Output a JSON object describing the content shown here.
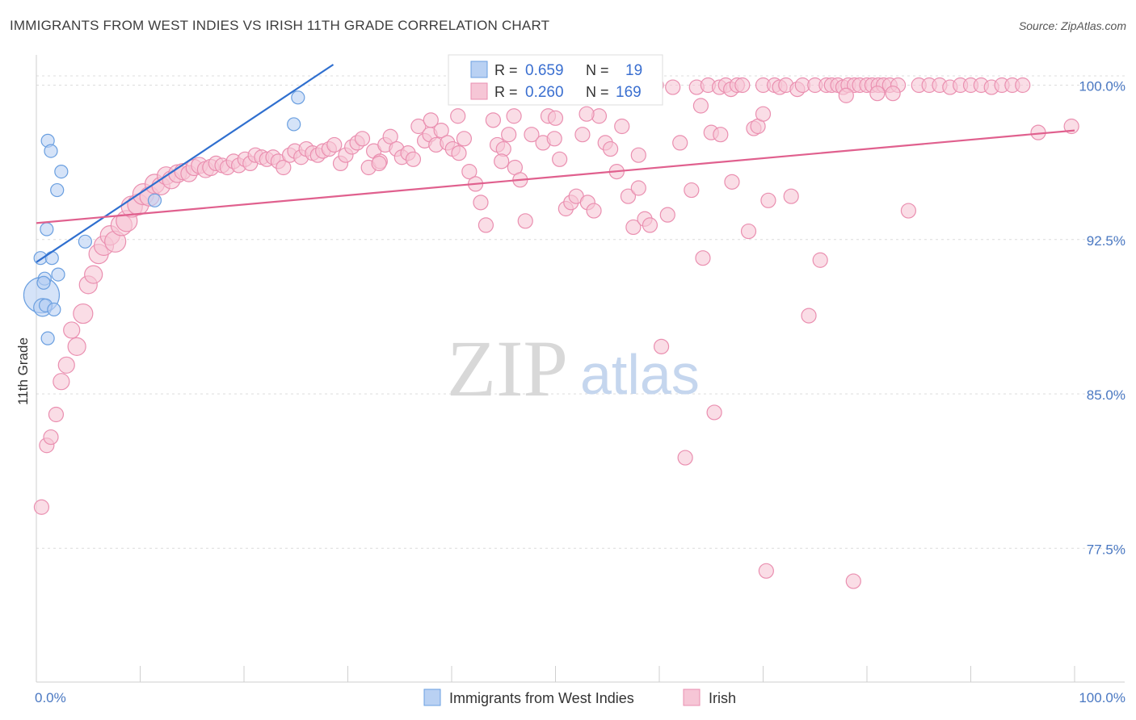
{
  "header": {
    "title": "IMMIGRANTS FROM WEST INDIES VS IRISH 11TH GRADE CORRELATION CHART",
    "source": "Source: ZipAtlas.com"
  },
  "watermark": {
    "zip": "ZIP",
    "atlas": "atlas"
  },
  "colors": {
    "blue": "#6a9fe0",
    "blue_fill": "#b9d1f3",
    "blue_line": "#2f6fcf",
    "pink": "#ea8fb0",
    "pink_fill": "#f6c6d6",
    "pink_line": "#e0608e",
    "axis_text": "#4a78c2",
    "grid": "#d9d9d9"
  },
  "legend_top": {
    "rows": [
      {
        "r_label": "R =",
        "r_value": "0.659",
        "n_label": "N =",
        "n_value": "19",
        "series": "blue"
      },
      {
        "r_label": "R =",
        "r_value": "0.260",
        "n_label": "N =",
        "n_value": "169",
        "series": "pink"
      }
    ]
  },
  "legend_bottom": [
    {
      "label": "Immigrants from West Indies",
      "series": "blue"
    },
    {
      "label": "Irish",
      "series": "pink"
    }
  ],
  "chart_data": {
    "type": "scatter",
    "title": "IMMIGRANTS FROM WEST INDIES VS IRISH 11TH GRADE CORRELATION CHART",
    "xlabel": "",
    "ylabel": "11th Grade",
    "xlim": [
      0,
      100
    ],
    "ylim": [
      71.0,
      101.0
    ],
    "x_tick_labels": [
      "0.0%",
      "100.0%"
    ],
    "y_ticks": [
      77.5,
      85.0,
      92.5,
      100.0
    ],
    "y_tick_labels": [
      "77.5%",
      "85.0%",
      "92.5%",
      "100.0%"
    ],
    "grid": "horizontal dashed",
    "series": [
      {
        "name": "Immigrants from West Indies",
        "color": "#6a9fe0",
        "r": 0.659,
        "n": 19,
        "trend": {
          "x0": 0.0,
          "y0": 91.4,
          "x1": 28.6,
          "y1": 101.0
        },
        "points": [
          [
            0.5,
            89.8,
            22
          ],
          [
            0.6,
            89.2,
            11
          ],
          [
            0.4,
            91.6,
            8
          ],
          [
            0.8,
            90.6,
            8
          ],
          [
            0.9,
            89.3,
            8
          ],
          [
            1.0,
            93.0,
            8
          ],
          [
            1.1,
            87.7,
            8
          ],
          [
            1.1,
            97.3,
            8
          ],
          [
            1.4,
            96.8,
            8
          ],
          [
            1.5,
            91.6,
            8
          ],
          [
            1.7,
            89.1,
            8
          ],
          [
            2.0,
            94.9,
            8
          ],
          [
            2.1,
            90.8,
            8
          ],
          [
            2.4,
            95.8,
            8
          ],
          [
            4.7,
            92.4,
            8
          ],
          [
            11.4,
            94.4,
            8
          ],
          [
            24.8,
            98.1,
            8
          ],
          [
            25.2,
            99.4,
            8
          ],
          [
            0.7,
            90.4,
            8
          ]
        ]
      },
      {
        "name": "Irish",
        "color": "#ea8fb0",
        "r": 0.26,
        "n": 169,
        "trend": {
          "x0": 0.0,
          "y0": 93.3,
          "x1": 100.0,
          "y1": 97.8
        },
        "points": [
          [
            0.5,
            79.5,
            9
          ],
          [
            1.0,
            82.5,
            9
          ],
          [
            1.4,
            82.9,
            9
          ],
          [
            1.9,
            84.0,
            9
          ],
          [
            2.4,
            85.6,
            10
          ],
          [
            2.9,
            86.4,
            10
          ],
          [
            3.4,
            88.1,
            10
          ],
          [
            3.9,
            87.3,
            11
          ],
          [
            4.5,
            88.9,
            12
          ],
          [
            5.0,
            90.3,
            11
          ],
          [
            5.5,
            90.8,
            11
          ],
          [
            6.0,
            91.8,
            12
          ],
          [
            6.5,
            92.2,
            12
          ],
          [
            7.1,
            92.7,
            12
          ],
          [
            7.6,
            92.4,
            13
          ],
          [
            8.2,
            93.2,
            13
          ],
          [
            8.7,
            93.4,
            13
          ],
          [
            9.2,
            94.1,
            13
          ],
          [
            9.8,
            94.2,
            13
          ],
          [
            10.3,
            94.7,
            13
          ],
          [
            10.9,
            94.6,
            12
          ],
          [
            11.4,
            95.2,
            12
          ],
          [
            12.0,
            95.1,
            11
          ],
          [
            12.5,
            95.6,
            11
          ],
          [
            13.0,
            95.4,
            11
          ],
          [
            13.6,
            95.7,
            11
          ],
          [
            14.1,
            95.8,
            10
          ],
          [
            14.7,
            95.7,
            10
          ],
          [
            15.2,
            96.0,
            10
          ],
          [
            15.7,
            96.1,
            10
          ],
          [
            16.3,
            95.9,
            10
          ],
          [
            16.8,
            96.0,
            10
          ],
          [
            17.3,
            96.2,
            9
          ],
          [
            17.9,
            96.1,
            9
          ],
          [
            18.4,
            96.0,
            9
          ],
          [
            19.0,
            96.3,
            9
          ],
          [
            19.5,
            96.1,
            9
          ],
          [
            20.1,
            96.4,
            9
          ],
          [
            20.6,
            96.2,
            9
          ],
          [
            21.1,
            96.6,
            9
          ],
          [
            21.7,
            96.5,
            9
          ],
          [
            22.2,
            96.4,
            9
          ],
          [
            22.8,
            96.5,
            9
          ],
          [
            23.3,
            96.3,
            9
          ],
          [
            23.8,
            96.0,
            9
          ],
          [
            24.4,
            96.6,
            9
          ],
          [
            24.9,
            96.8,
            9
          ],
          [
            25.5,
            96.5,
            9
          ],
          [
            26.0,
            96.9,
            9
          ],
          [
            26.6,
            96.7,
            9
          ],
          [
            27.1,
            96.6,
            9
          ],
          [
            27.6,
            96.8,
            9
          ],
          [
            28.2,
            96.9,
            9
          ],
          [
            28.7,
            97.1,
            9
          ],
          [
            29.3,
            96.2,
            9
          ],
          [
            29.8,
            96.6,
            9
          ],
          [
            30.4,
            97.0,
            9
          ],
          [
            30.9,
            97.2,
            9
          ],
          [
            31.4,
            97.4,
            9
          ],
          [
            32.0,
            96.0,
            9
          ],
          [
            32.5,
            96.8,
            9
          ],
          [
            33.1,
            96.3,
            9
          ],
          [
            33.6,
            97.1,
            9
          ],
          [
            34.1,
            97.5,
            9
          ],
          [
            34.7,
            96.9,
            9
          ],
          [
            35.2,
            96.5,
            9
          ],
          [
            35.8,
            96.7,
            9
          ],
          [
            36.3,
            96.4,
            9
          ],
          [
            36.8,
            98.0,
            9
          ],
          [
            37.4,
            97.3,
            9
          ],
          [
            37.9,
            97.6,
            9
          ],
          [
            38.5,
            97.1,
            9
          ],
          [
            39.0,
            97.8,
            9
          ],
          [
            39.6,
            97.2,
            9
          ],
          [
            40.1,
            96.9,
            9
          ],
          [
            40.7,
            96.7,
            9
          ],
          [
            41.2,
            97.4,
            9
          ],
          [
            41.7,
            95.8,
            9
          ],
          [
            42.3,
            95.2,
            9
          ],
          [
            42.8,
            94.3,
            9
          ],
          [
            43.3,
            93.2,
            9
          ],
          [
            44.0,
            98.3,
            9
          ],
          [
            44.4,
            97.1,
            9
          ],
          [
            45.0,
            96.9,
            9
          ],
          [
            45.5,
            97.6,
            9
          ],
          [
            46.1,
            96.0,
            9
          ],
          [
            46.6,
            95.4,
            9
          ],
          [
            47.1,
            93.4,
            9
          ],
          [
            47.7,
            97.6,
            9
          ],
          [
            48.2,
            99.9,
            9
          ],
          [
            48.8,
            97.2,
            9
          ],
          [
            49.3,
            98.5,
            9
          ],
          [
            49.9,
            97.4,
            9
          ],
          [
            50.4,
            96.4,
            9
          ],
          [
            51.0,
            94.0,
            9
          ],
          [
            51.5,
            94.3,
            9
          ],
          [
            52.0,
            94.6,
            9
          ],
          [
            52.6,
            97.6,
            9
          ],
          [
            53.1,
            94.3,
            9
          ],
          [
            53.7,
            93.9,
            9
          ],
          [
            54.2,
            98.5,
            9
          ],
          [
            54.8,
            97.2,
            9
          ],
          [
            55.3,
            96.9,
            9
          ],
          [
            55.9,
            95.8,
            9
          ],
          [
            56.4,
            98.0,
            9
          ],
          [
            57.0,
            94.6,
            9
          ],
          [
            57.5,
            93.1,
            9
          ],
          [
            58.0,
            95.0,
            9
          ],
          [
            58.6,
            93.5,
            9
          ],
          [
            59.1,
            93.2,
            9
          ],
          [
            59.7,
            100.0,
            9
          ],
          [
            60.2,
            87.3,
            9
          ],
          [
            60.8,
            93.7,
            9
          ],
          [
            61.3,
            99.9,
            9
          ],
          [
            62.5,
            81.9,
            9
          ],
          [
            63.1,
            94.9,
            9
          ],
          [
            63.6,
            99.9,
            9
          ],
          [
            64.2,
            91.6,
            9
          ],
          [
            64.7,
            100.0,
            9
          ],
          [
            65.3,
            84.1,
            9
          ],
          [
            65.8,
            99.9,
            9
          ],
          [
            66.4,
            100.0,
            9
          ],
          [
            66.9,
            99.8,
            9
          ],
          [
            67.5,
            100.0,
            9
          ],
          [
            68.0,
            100.0,
            9
          ],
          [
            68.6,
            92.9,
            9
          ],
          [
            69.1,
            97.9,
            9
          ],
          [
            70.0,
            100.0,
            9
          ],
          [
            70.5,
            94.4,
            9
          ],
          [
            71.1,
            100.0,
            9
          ],
          [
            71.6,
            99.9,
            9
          ],
          [
            72.2,
            100.0,
            9
          ],
          [
            72.7,
            94.6,
            9
          ],
          [
            73.3,
            99.8,
            9
          ],
          [
            73.8,
            100.0,
            9
          ],
          [
            74.4,
            88.8,
            9
          ],
          [
            75.0,
            100.0,
            9
          ],
          [
            75.5,
            91.5,
            9
          ],
          [
            76.1,
            100.0,
            9
          ],
          [
            76.6,
            100.0,
            9
          ],
          [
            77.2,
            100.0,
            9
          ],
          [
            77.7,
            99.9,
            9
          ],
          [
            78.2,
            100.0,
            9
          ],
          [
            78.8,
            100.0,
            9
          ],
          [
            79.3,
            100.0,
            9
          ],
          [
            80.0,
            100.0,
            9
          ],
          [
            80.5,
            100.0,
            9
          ],
          [
            81.1,
            100.0,
            9
          ],
          [
            81.6,
            100.0,
            9
          ],
          [
            82.2,
            100.0,
            9
          ],
          [
            83.0,
            100.0,
            9
          ],
          [
            84.0,
            93.9,
            9
          ],
          [
            85.0,
            100.0,
            9
          ],
          [
            86.0,
            100.0,
            9
          ],
          [
            87.0,
            100.0,
            9
          ],
          [
            88.0,
            99.9,
            9
          ],
          [
            89.0,
            100.0,
            9
          ],
          [
            90.0,
            100.0,
            9
          ],
          [
            91.0,
            100.0,
            9
          ],
          [
            92.0,
            99.9,
            9
          ],
          [
            93.0,
            100.0,
            9
          ],
          [
            94.0,
            100.0,
            9
          ],
          [
            95.0,
            100.0,
            9
          ],
          [
            96.5,
            97.7,
            9
          ],
          [
            99.7,
            98.0,
            9
          ],
          [
            65.0,
            97.7,
            9
          ],
          [
            65.9,
            97.6,
            9
          ],
          [
            62.0,
            97.2,
            9
          ],
          [
            58.0,
            96.6,
            9
          ],
          [
            69.5,
            98.0,
            9
          ],
          [
            33.0,
            96.2,
            9
          ],
          [
            44.8,
            96.3,
            9
          ],
          [
            50.0,
            98.4,
            9
          ],
          [
            53.0,
            98.6,
            9
          ],
          [
            38.0,
            98.3,
            9
          ],
          [
            40.6,
            98.5,
            9
          ],
          [
            46.0,
            98.5,
            9
          ],
          [
            67.0,
            95.3,
            9
          ],
          [
            64.0,
            99.0,
            9
          ],
          [
            70.0,
            98.6,
            9
          ],
          [
            78.0,
            99.5,
            9
          ],
          [
            81.0,
            99.6,
            9
          ],
          [
            82.5,
            99.6,
            9
          ],
          [
            70.3,
            76.4,
            9
          ],
          [
            78.7,
            75.9,
            9
          ]
        ]
      }
    ]
  }
}
